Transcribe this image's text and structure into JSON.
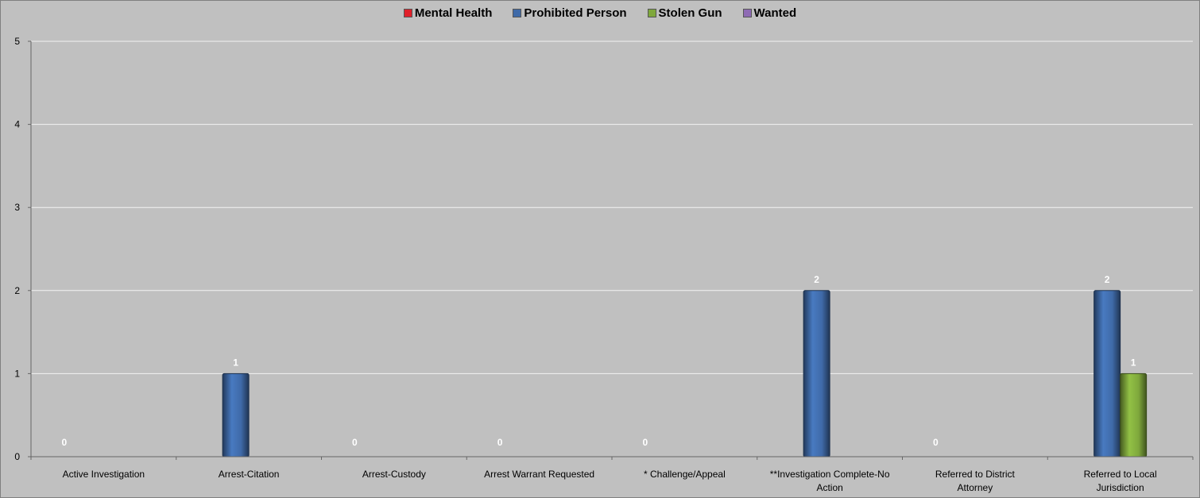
{
  "chart_data": {
    "type": "bar",
    "title": "",
    "xlabel": "",
    "ylabel": "",
    "ylim": [
      0,
      5
    ],
    "yticks": [
      0,
      1,
      2,
      3,
      4,
      5
    ],
    "grid": true,
    "legend_position": "top",
    "categories": [
      [
        "Active Investigation"
      ],
      [
        "Arrest-Citation"
      ],
      [
        "Arrest-Custody"
      ],
      [
        "Arrest Warrant Requested"
      ],
      [
        "* Challenge/Appeal"
      ],
      [
        "**Investigation Complete-No",
        "Action"
      ],
      [
        "Referred to District",
        "Attorney"
      ],
      [
        "Referred to Local",
        "Jurisdiction"
      ]
    ],
    "series": [
      {
        "name": "Mental Health",
        "color": "#e0202a",
        "values": [
          0,
          0,
          0,
          0,
          0,
          0,
          0,
          0
        ]
      },
      {
        "name": "Prohibited Person",
        "color": "#3f6aa8",
        "values": [
          0,
          1,
          0,
          0,
          0,
          2,
          0,
          2
        ]
      },
      {
        "name": "Stolen Gun",
        "color": "#7fa83c",
        "values": [
          0,
          0,
          0,
          0,
          0,
          0,
          0,
          1
        ]
      },
      {
        "name": "Wanted",
        "color": "#8e6bb4",
        "values": [
          0,
          0,
          0,
          0,
          0,
          0,
          0,
          0
        ]
      }
    ],
    "data_labels": [
      {
        "category": 0,
        "series": 0,
        "text": "0"
      },
      {
        "category": 1,
        "series": 1,
        "text": "1"
      },
      {
        "category": 2,
        "series": 0,
        "text": "0"
      },
      {
        "category": 3,
        "series": 0,
        "text": "0"
      },
      {
        "category": 4,
        "series": 0,
        "text": "0"
      },
      {
        "category": 5,
        "series": 1,
        "text": "2"
      },
      {
        "category": 6,
        "series": 0,
        "text": "0"
      },
      {
        "category": 7,
        "series": 1,
        "text": "2"
      },
      {
        "category": 7,
        "series": 2,
        "text": "1"
      }
    ]
  }
}
